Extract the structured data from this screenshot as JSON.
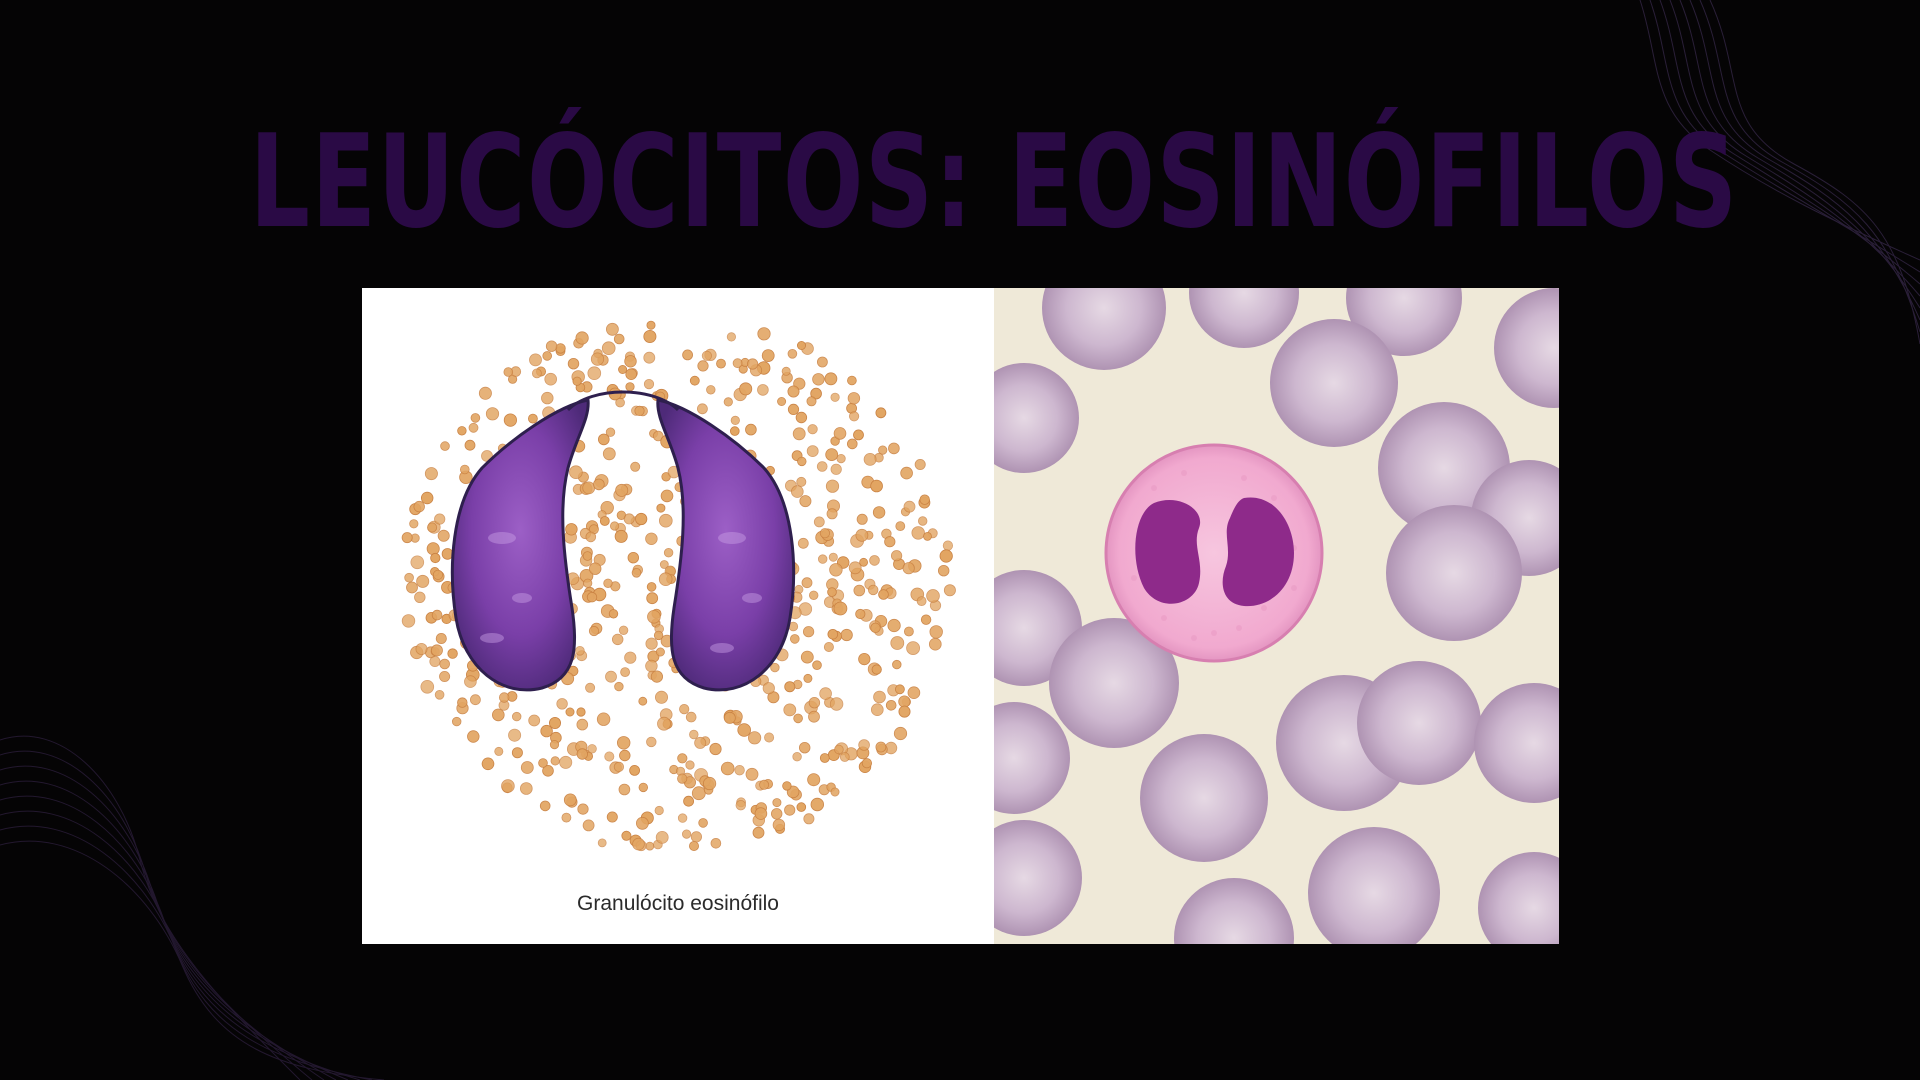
{
  "slide": {
    "title": "LEUCÓCITOS: EOSINÓFILOS"
  },
  "figure": {
    "illustration_caption": "Granulócito eosinófilo"
  },
  "colors": {
    "background": "#050405",
    "title": "#2a0a45",
    "nucleus": "#7a3fa8",
    "granule": "#e2a562",
    "rbc": "#c7b0c6",
    "cytoplasm": "#f1a9cf"
  },
  "icons": [
    "wave-lines-decoration"
  ]
}
